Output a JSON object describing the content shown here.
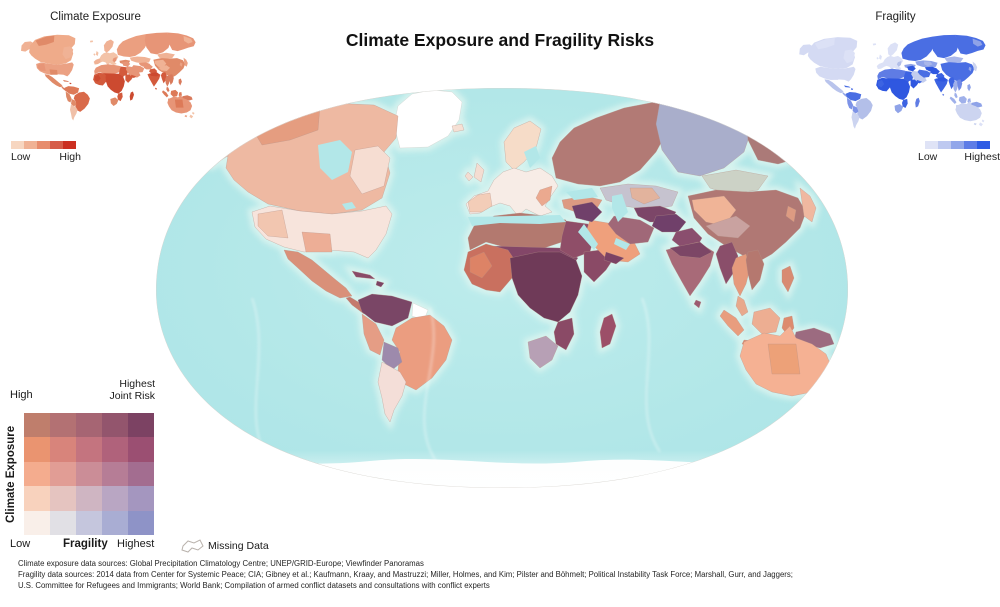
{
  "title": "Climate Exposure and Fragility Risks",
  "insets": {
    "climate": {
      "title": "Climate Exposure",
      "low_label": "Low",
      "high_label": "High",
      "ramp": [
        "#f7d6c0",
        "#f0b294",
        "#e78c6c",
        "#d65c48",
        "#cb2f21"
      ]
    },
    "fragility": {
      "title": "Fragility",
      "low_label": "Low",
      "high_label": "Highest",
      "ramp": [
        "#dfe3f6",
        "#bec9f0",
        "#92a7ea",
        "#5e7de6",
        "#2e5ce4"
      ]
    }
  },
  "bivariate_legend": {
    "top_left_label": "High",
    "corner_line1": "Highest",
    "corner_line2": "Joint Risk",
    "y_axis_label": "Climate Exposure",
    "x_low_label": "Low",
    "x_axis_label": "Fragility",
    "x_high_label": "Highest",
    "grid": [
      [
        "#bf7e6c",
        "#b37173",
        "#a66573",
        "#93556d",
        "#7c4263"
      ],
      [
        "#ea9470",
        "#d8847b",
        "#c4747f",
        "#b0627b",
        "#9b4f72"
      ],
      [
        "#f4ac8e",
        "#e19d95",
        "#cb8d97",
        "#b67d96",
        "#a36d90"
      ],
      [
        "#f8d2bd",
        "#e5c4c0",
        "#cfb5c2",
        "#b9a6c3",
        "#a496bf"
      ],
      [
        "#f9efe9",
        "#e1e0e5",
        "#c5c6dd",
        "#a9add3",
        "#8e93c7"
      ]
    ]
  },
  "missing_data": {
    "label": "Missing Data"
  },
  "sources": [
    "Climate exposure data sources: Global Precipitation Climatology Centre; UNEP/GRID-Europe; Viewfinder Panoramas",
    "Fragility data sources: 2014 data from Center for Systemic Peace; CIA; Gibney et al.; Kaufmann, Kraay, and Mastruzzi; Miller, Holmes, and Kim; Pilster and Böhmelt; Political Instability Task Force; Marshall, Gurr, and Jaggers;",
    "U.S. Committee for Refugees and Immigrants; World Bank; Compilation of armed conflict datasets and consultations with conflict experts"
  ],
  "colors": {
    "page_bg": "#ffffff",
    "ocean": "#b2e7e8",
    "ocean_light": "#bdecec",
    "ocean_deep": "#a9e4e6",
    "coast_glow": "#def5f0",
    "land_border": "#b59287",
    "missing_border": "#ccc5bf",
    "map_edge": "#d9d5d0"
  },
  "map_colors": {
    "main": {
      "greenland": "#ffffff",
      "alaska": "#f2cdbb",
      "canada": "#eeb9a2",
      "canada_patch_nw": "#e59d80",
      "canada_patch_e": "#f6ddd2",
      "usa": "#f7e4dc",
      "usa_patch_west": "#f2c6b0",
      "usa_patch_south": "#edae96",
      "mexico": "#d99079",
      "centam": "#c4796c",
      "cuba": "#8a4a68",
      "hispaniola": "#7c4264",
      "sa_north": "#7a4666",
      "sa_guyanas": "#ffffff",
      "brazil": "#eb9d80",
      "peru": "#e59d85",
      "bolivia": "#9d8aac",
      "argentina": "#f4ded8",
      "iceland": "#f6e0d4",
      "scandinavia": "#f6dcc8",
      "uk": "#f4ddd2",
      "ireland": "#f4ddd2",
      "europe": "#f7ece6",
      "europe_patch": "#f3cdb8",
      "balkans": "#eba98f",
      "turkey": "#dd9a82",
      "africa_north": "#b3796f",
      "sahel": "#834668",
      "egypt": "#8f4e68",
      "africa_west": "#c9705f",
      "africa_west_patch": "#dd8366",
      "africa_central": "#6f3a58",
      "africa_horn": "#8a4a66",
      "africa_se": "#8a4a66",
      "africa_s": "#b7a0b5",
      "madagascar": "#9c4f68",
      "arabia": "#efa07c",
      "yemen": "#7c4264",
      "iraq_syria": "#70406a",
      "russia_west": "#b27a75",
      "russia_central": "#a9aecb",
      "russia_east": "#ab7a78",
      "russia_patch": "#d8c7c2",
      "kazakh": "#c6c3cf",
      "kazakh_patch": "#e2b39d",
      "centralasia": "#7c4668",
      "iran": "#a06878",
      "afghan": "#70406a",
      "pakistan": "#8a4e6e",
      "mongolia": "#ccd2c6",
      "china": "#b07874",
      "china_west": "#f0b497",
      "tibet": "#c9a2a0",
      "korea": "#dd9b82",
      "japan": "#f0b8a0",
      "india": "#a86a78",
      "india_north": "#7c4666",
      "srilanka": "#9c5a70",
      "myanmar": "#8a4e6a",
      "thailand": "#e59a7c",
      "vietnam": "#b5786f",
      "malay": "#e8a98c",
      "sumatra": "#e89d7e",
      "java": "#dd8b6e",
      "borneo": "#edae92",
      "sulawesi": "#dd8b6e",
      "philippines": "#d88b72",
      "newguinea": "#9c6b80",
      "australia": "#f5b193",
      "australia_patch": "#eda178",
      "tasmania": "#f0c0ac",
      "nz_n": "#f6ddd2",
      "nz_s": "#f6ddd2"
    },
    "climate": {
      "greenland": "#ffffff",
      "alaska": "#f0b295",
      "canada": "#efab8a",
      "canada_patch_nw": "#e08a68",
      "canada_patch_e": "#f0b295",
      "usa": "#eba183",
      "usa_patch_west": "#e79577",
      "usa_patch_south": "#e08a68",
      "mexico": "#e08a68",
      "centam": "#d97a5c",
      "cuba": "#d97a5c",
      "hispaniola": "#cc4a30",
      "sa_north": "#dd7a58",
      "sa_guyanas": "#ffffff",
      "brazil": "#d96a4a",
      "peru": "#dd8866",
      "bolivia": "#e08a68",
      "argentina": "#f0c0a8",
      "iceland": "#f3c3a8",
      "scandinavia": "#f0b295",
      "uk": "#f3c3a8",
      "ireland": "#f3c3a8",
      "europe": "#f3c3a8",
      "europe_patch": "#f0b295",
      "balkans": "#e79577",
      "turkey": "#e08a68",
      "africa_north": "#e79577",
      "sahel": "#cc4a30",
      "egypt": "#d35a3c",
      "africa_west": "#d35a3c",
      "africa_west_patch": "#cc4a30",
      "africa_central": "#cc4a30",
      "africa_horn": "#d35a3c",
      "africa_se": "#d35a3c",
      "africa_s": "#e08a68",
      "madagascar": "#cc4a30",
      "arabia": "#e79577",
      "yemen": "#d35a3c",
      "iraq_syria": "#e79577",
      "russia_west": "#eb9f80",
      "russia_central": "#e79577",
      "russia_east": "#e79577",
      "russia_patch": "#f0b295",
      "kazakh": "#f0b295",
      "kazakh_patch": "#f0b295",
      "centralasia": "#e79577",
      "iran": "#e79577",
      "afghan": "#e79577",
      "pakistan": "#d35a3c",
      "mongolia": "#f0b295",
      "china": "#e08a68",
      "china_west": "#f0b295",
      "tibet": "#f0b295",
      "korea": "#eba183",
      "japan": "#eba183",
      "india": "#d35a3c",
      "india_north": "#cc4a30",
      "srilanka": "#d35a3c",
      "myanmar": "#d35a3c",
      "thailand": "#d97a5c",
      "vietnam": "#d97a5c",
      "malay": "#d97a5c",
      "sumatra": "#dd7a58",
      "java": "#dd7a58",
      "borneo": "#dd7a58",
      "sulawesi": "#dd7a58",
      "philippines": "#d97a5c",
      "newguinea": "#d97a5c",
      "australia": "#e79577",
      "australia_patch": "#dd7a58",
      "tasmania": "#eba183",
      "nz_n": "#f3c3a8",
      "nz_s": "#f3c3a8"
    },
    "fragility": {
      "greenland": "#ffffff",
      "alaska": "#d4daf3",
      "canada": "#d4daf3",
      "canada_patch_nw": "#dce1f6",
      "canada_patch_e": "#dce1f6",
      "usa": "#d4daf3",
      "usa_patch_west": "#d4daf3",
      "usa_patch_south": "#d4daf3",
      "mexico": "#b9c4ec",
      "centam": "#8fa3e8",
      "cuba": "#4a6ee3",
      "hispaniola": "#2f57e0",
      "sa_north": "#4a6ee3",
      "sa_guyanas": "#ffffff",
      "brazil": "#b3bfe9",
      "peru": "#7d93e7",
      "bolivia": "#7d93e7",
      "argentina": "#ccd4f0",
      "iceland": "#dce1f6",
      "scandinavia": "#dce1f6",
      "uk": "#dce1f6",
      "ireland": "#dce1f6",
      "europe": "#dce1f6",
      "europe_patch": "#dce1f6",
      "balkans": "#b3bfe9",
      "turkey": "#8fa3e8",
      "africa_north": "#5f7ce4",
      "sahel": "#2f57e0",
      "egypt": "#3c63e2",
      "africa_west": "#2f57e0",
      "africa_west_patch": "#3c63e2",
      "africa_central": "#2f57e0",
      "africa_horn": "#2f57e0",
      "africa_se": "#3c63e2",
      "africa_s": "#8fa3e8",
      "madagascar": "#5f7ce4",
      "arabia": "#c3cdef",
      "yemen": "#3c63e2",
      "iraq_syria": "#2f57e0",
      "russia_west": "#4a6ee3",
      "russia_central": "#4a6ee3",
      "russia_east": "#4a6ee3",
      "russia_patch": "#8fa3e8",
      "kazakh": "#8fa3e8",
      "kazakh_patch": "#aab7ea",
      "centralasia": "#2f57e0",
      "iran": "#4a6ee3",
      "afghan": "#2f57e0",
      "pakistan": "#3c63e2",
      "mongolia": "#aab7ea",
      "china": "#4a6ee3",
      "china_west": "#4a6ee3",
      "tibet": "#4a6ee3",
      "korea": "#8fa3e8",
      "japan": "#ccd4f0",
      "india": "#3c63e2",
      "india_north": "#2f57e0",
      "srilanka": "#6f88e6",
      "myanmar": "#3c63e2",
      "thailand": "#9fb0ea",
      "vietnam": "#6f88e6",
      "malay": "#9fb0ea",
      "sumatra": "#9fb0ea",
      "java": "#9fb0ea",
      "borneo": "#9fb0ea",
      "sulawesi": "#9fb0ea",
      "philippines": "#8fa3e8",
      "newguinea": "#8fa3e8",
      "australia": "#ccd4f0",
      "australia_patch": "#ccd4f0",
      "tasmania": "#ccd4f0",
      "nz_n": "#dce1f6",
      "nz_s": "#dce1f6"
    }
  }
}
